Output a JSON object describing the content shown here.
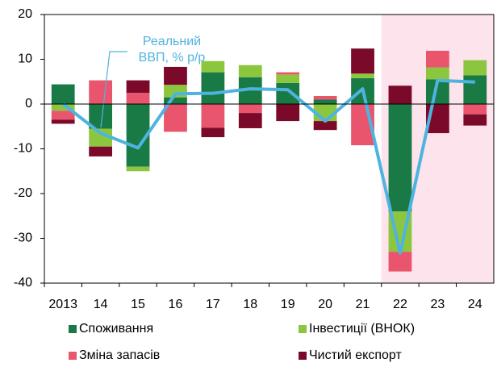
{
  "chart_data": {
    "type": "stacked_bar_line",
    "categories": [
      "2013",
      "14",
      "15",
      "16",
      "17",
      "18",
      "19",
      "20",
      "21",
      "22",
      "23",
      "24"
    ],
    "series": [
      {
        "name": "Споживання",
        "color": "#1a7a45",
        "values": [
          4.4,
          -5.5,
          -14.0,
          1.5,
          7.1,
          6.0,
          4.7,
          1.0,
          5.8,
          -24.0,
          5.5,
          6.4
        ]
      },
      {
        "name": "Інвестиції (ВНОК)",
        "color": "#8cc63f",
        "values": [
          -1.5,
          -4.0,
          -1.0,
          2.8,
          2.5,
          2.7,
          1.9,
          -3.8,
          1.0,
          -9.0,
          2.7,
          3.4
        ]
      },
      {
        "name": "Зміна запасів",
        "color": "#e8556d",
        "values": [
          -2.0,
          5.3,
          2.5,
          -6.2,
          -5.3,
          -2.0,
          0.5,
          0.8,
          -9.2,
          -4.4,
          3.7,
          -2.3
        ]
      },
      {
        "name": "Чистий експорт",
        "color": "#7b0a2a",
        "values": [
          -0.9,
          -2.2,
          2.8,
          4.0,
          -2.1,
          -3.4,
          -3.8,
          -2.0,
          5.6,
          4.1,
          -6.5,
          -2.5
        ]
      }
    ],
    "line": {
      "color": "#4fb3e0",
      "values": [
        0,
        -6.5,
        -9.8,
        2.3,
        2.4,
        3.4,
        3.2,
        -3.8,
        3.4,
        -33.3,
        5.3,
        4.9
      ]
    },
    "annotation": [
      "Реальний",
      "ВВП, % р/р"
    ],
    "ylim": [
      -40,
      20
    ],
    "yticks": [
      -40,
      -30,
      -20,
      -10,
      0,
      10,
      20
    ],
    "grid": false,
    "shaded": {
      "from": "22",
      "color": "#fde4ec"
    }
  }
}
